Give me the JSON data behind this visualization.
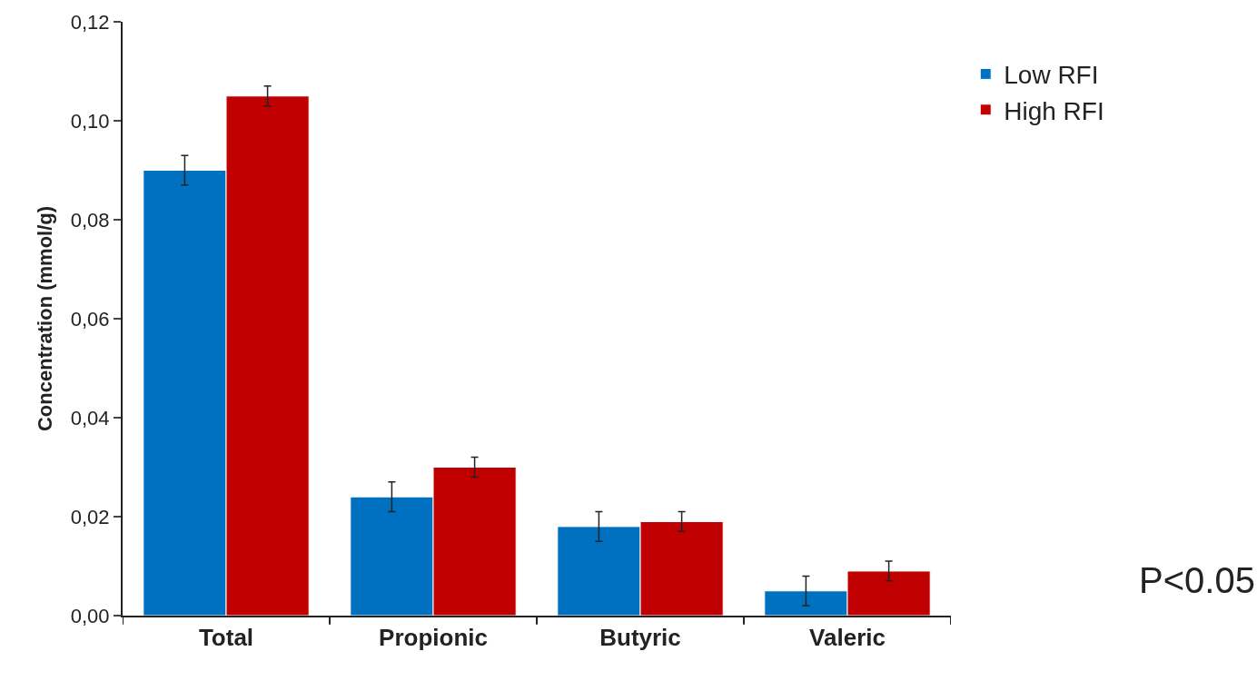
{
  "chart_data": {
    "type": "bar",
    "ylabel": "Concentration (mmol/g)",
    "categories": [
      "Total",
      "Propionic",
      "Butyric",
      "Valeric"
    ],
    "series": [
      {
        "name": "Low RFI",
        "color": "#0070c0",
        "values": [
          0.09,
          0.024,
          0.018,
          0.005
        ],
        "errors": [
          0.003,
          0.003,
          0.003,
          0.003
        ]
      },
      {
        "name": "High RFI",
        "color": "#c00000",
        "values": [
          0.105,
          0.03,
          0.019,
          0.009
        ],
        "errors": [
          0.002,
          0.002,
          0.002,
          0.002
        ]
      }
    ],
    "ylim": [
      0,
      0.12
    ],
    "yticks": [
      {
        "value": 0,
        "label": "0,00"
      },
      {
        "value": 0.02,
        "label": "0,02"
      },
      {
        "value": 0.04,
        "label": "0,04"
      },
      {
        "value": 0.06,
        "label": "0,06"
      },
      {
        "value": 0.08,
        "label": "0,08"
      },
      {
        "value": 0.1,
        "label": "0,10"
      },
      {
        "value": 0.12,
        "label": "0,12"
      }
    ],
    "annotations": [
      "P<0.05"
    ],
    "legend": "top right"
  }
}
